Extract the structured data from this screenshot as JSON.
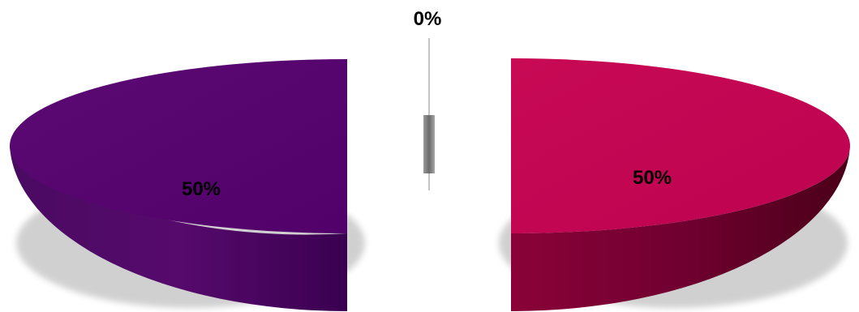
{
  "chart_data": {
    "type": "pie",
    "style": "3d-exploded",
    "slices": [
      {
        "value": 50,
        "label": "50%",
        "color": "#560a6c",
        "side_dark": "#3b0052"
      },
      {
        "value": 0,
        "label": "0%",
        "color": "#8c8c8c",
        "side_dark": "#6e6e6e"
      },
      {
        "value": 50,
        "label": "50%",
        "color": "#c10650",
        "side_dark": "#4c0018"
      }
    ],
    "legend": "none",
    "title": ""
  }
}
